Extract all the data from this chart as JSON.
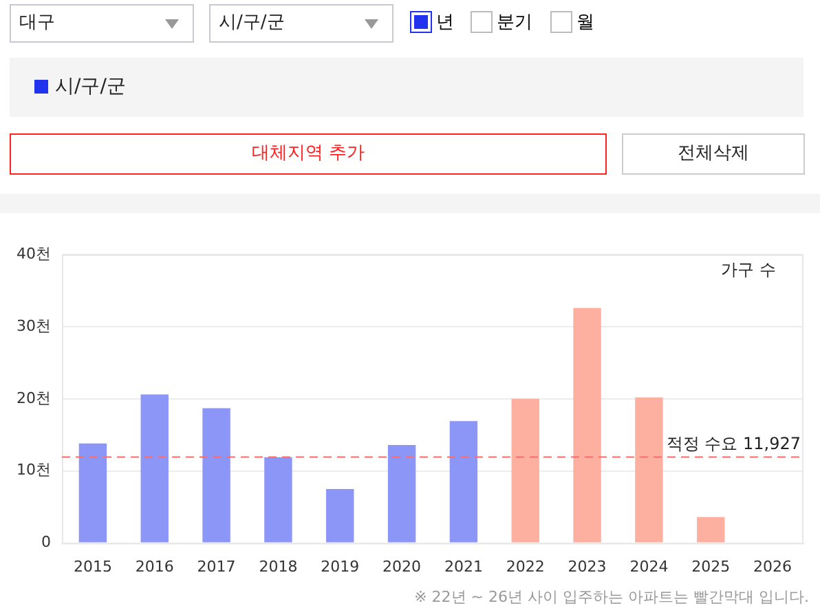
{
  "chart_data": {
    "type": "bar",
    "categories": [
      "2015",
      "2016",
      "2017",
      "2018",
      "2019",
      "2020",
      "2021",
      "2022",
      "2023",
      "2024",
      "2025",
      "2026"
    ],
    "values": [
      13.8,
      20.6,
      18.7,
      11.9,
      7.5,
      13.6,
      16.9,
      20.0,
      32.6,
      20.2,
      3.6,
      null
    ],
    "colors": [
      "#8c96f7",
      "#8c96f7",
      "#8c96f7",
      "#8c96f7",
      "#8c96f7",
      "#8c96f7",
      "#8c96f7",
      "#fdb0a0",
      "#fdb0a0",
      "#fdb0a0",
      "#fdb0a0",
      "#fdb0a0"
    ],
    "ylim": [
      0,
      40
    ],
    "yticks": [
      0,
      {
        "value": 10,
        "label": "10천"
      },
      {
        "value": 20,
        "label": "20천"
      },
      {
        "value": 30,
        "label": "30천"
      },
      {
        "value": 40,
        "label": "40천"
      }
    ],
    "grid": "y",
    "legend": false,
    "ref_lines": [
      {
        "axis": "y",
        "value": 11.927,
        "label": "적정 수요 11,927",
        "color": "#ff6b6b",
        "line_style": "dashed"
      }
    ],
    "annotations": [
      "대구",
      "시/구/군",
      "년",
      "분기",
      "월",
      "시/구/군",
      "대체지역 추가",
      "전체삭제",
      "가구 수",
      "※ 22년 ~ 26년 사이 입주하는 아파트는 빨간막대 입니다."
    ]
  }
}
